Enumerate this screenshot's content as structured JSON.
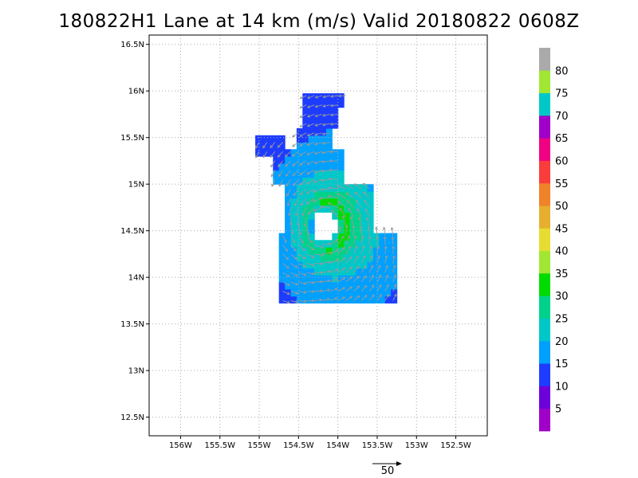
{
  "title": "180822H1 Lane at 14 km (m/s) Valid 20180822 0608Z",
  "map": {
    "lon_range": [
      -156.4,
      -152.1
    ],
    "lat_range": [
      12.3,
      16.6
    ],
    "lon_ticks": [
      {
        "value": -156.0,
        "label": "156W"
      },
      {
        "value": -155.5,
        "label": "155.5W"
      },
      {
        "value": -155.0,
        "label": "155W"
      },
      {
        "value": -154.5,
        "label": "154.5W"
      },
      {
        "value": -154.0,
        "label": "154W"
      },
      {
        "value": -153.5,
        "label": "153.5W"
      },
      {
        "value": -153.0,
        "label": "153W"
      },
      {
        "value": -152.5,
        "label": "152.5W"
      }
    ],
    "lat_ticks": [
      {
        "value": 16.5,
        "label": "16.5N"
      },
      {
        "value": 16.0,
        "label": "16N"
      },
      {
        "value": 15.5,
        "label": "15.5N"
      },
      {
        "value": 15.0,
        "label": "15N"
      },
      {
        "value": 14.5,
        "label": "14.5N"
      },
      {
        "value": 14.0,
        "label": "14N"
      },
      {
        "value": 13.5,
        "label": "13.5N"
      },
      {
        "value": 13.0,
        "label": "13N"
      },
      {
        "value": 12.5,
        "label": "12.5N"
      }
    ],
    "grid": "dotted",
    "wind_field": {
      "center": [
        -154.17,
        14.55
      ],
      "eye_radius_deg": 0.17,
      "peak_speed_ms": 31,
      "rotation": "counterclockwise",
      "data_resolution_deg": 0.075,
      "vector_spacing_deg": 0.1
    }
  },
  "colorbar": {
    "levels": [
      5,
      10,
      15,
      20,
      25,
      30,
      35,
      40,
      45,
      50,
      55,
      60,
      65,
      70,
      75,
      80
    ],
    "colors": [
      "#a000c8",
      "#6e00dc",
      "#1e3cff",
      "#00a0ff",
      "#00c8c8",
      "#00d28c",
      "#00dc00",
      "#a0e632",
      "#e6dc32",
      "#e6af2d",
      "#f08228",
      "#fa3c3c",
      "#f00082",
      "#a000c8",
      "#00c8c8",
      "#a0e632",
      "#aaaaaa"
    ]
  },
  "reference_vector": {
    "value": "50"
  }
}
